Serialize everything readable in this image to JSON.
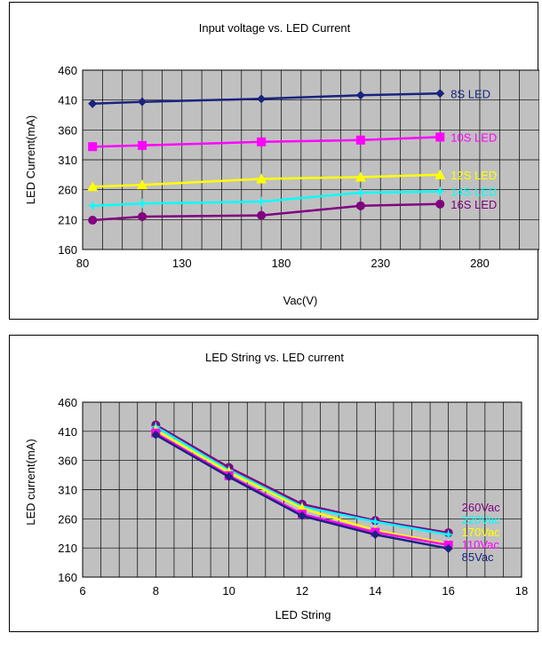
{
  "chart_data": [
    {
      "type": "line",
      "title": "Input voltage vs. LED Current",
      "xlabel": "Vac(V)",
      "ylabel": "LED Current(mA)",
      "xlim": [
        80,
        310
      ],
      "ylim": [
        160,
        460
      ],
      "xticks": [
        80,
        130,
        180,
        230,
        280
      ],
      "yticks": [
        160,
        210,
        260,
        310,
        360,
        410,
        460
      ],
      "grid": true,
      "series": [
        {
          "name": "8S LED",
          "color": "#1a237e",
          "marker": "diamond",
          "x": [
            85,
            110,
            170,
            220,
            260
          ],
          "values": [
            404,
            407,
            412,
            418,
            421
          ]
        },
        {
          "name": "10S LED",
          "color": "#ff00ff",
          "marker": "square",
          "x": [
            85,
            110,
            170,
            220,
            260
          ],
          "values": [
            332,
            334,
            340,
            343,
            348
          ]
        },
        {
          "name": "12S LED",
          "color": "#ffff00",
          "marker": "triangle",
          "x": [
            85,
            110,
            170,
            220,
            260
          ],
          "values": [
            265,
            268,
            278,
            281,
            285
          ]
        },
        {
          "name": "14S LED",
          "color": "#00ffff",
          "marker": "star",
          "x": [
            85,
            110,
            170,
            220,
            260
          ],
          "values": [
            233,
            237,
            240,
            255,
            257
          ]
        },
        {
          "name": "16S LED",
          "color": "#800080",
          "marker": "circle",
          "x": [
            85,
            110,
            170,
            220,
            260
          ],
          "values": [
            209,
            215,
            217,
            233,
            236
          ]
        }
      ]
    },
    {
      "type": "line",
      "title": "LED String vs. LED current",
      "xlabel": "LED String",
      "ylabel": "LED current(mA)",
      "xlim": [
        6,
        18
      ],
      "ylim": [
        160,
        460
      ],
      "xticks": [
        6,
        8,
        10,
        12,
        14,
        16,
        18
      ],
      "yticks": [
        160,
        210,
        260,
        310,
        360,
        410,
        460
      ],
      "grid": true,
      "series": [
        {
          "name": "260Vac",
          "color": "#800080",
          "marker": "circle",
          "x": [
            8,
            10,
            12,
            14,
            16
          ],
          "values": [
            421,
            348,
            285,
            257,
            236
          ]
        },
        {
          "name": "220Vac",
          "color": "#00ffff",
          "marker": "star",
          "x": [
            8,
            10,
            12,
            14,
            16
          ],
          "values": [
            418,
            343,
            281,
            255,
            233
          ]
        },
        {
          "name": "170Vac",
          "color": "#ffff00",
          "marker": "triangle",
          "x": [
            8,
            10,
            12,
            14,
            16
          ],
          "values": [
            412,
            340,
            278,
            240,
            217
          ]
        },
        {
          "name": "110Vac",
          "color": "#ff00ff",
          "marker": "square",
          "x": [
            8,
            10,
            12,
            14,
            16
          ],
          "values": [
            407,
            334,
            268,
            237,
            215
          ]
        },
        {
          "name": "85Vac",
          "color": "#1a237e",
          "marker": "diamond",
          "x": [
            8,
            10,
            12,
            14,
            16
          ],
          "values": [
            404,
            332,
            265,
            233,
            209
          ]
        }
      ]
    }
  ]
}
